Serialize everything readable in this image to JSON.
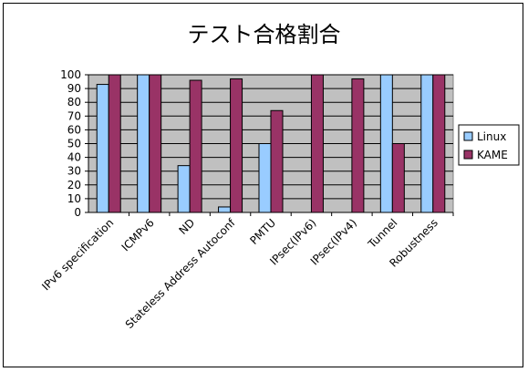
{
  "chart_data": {
    "type": "bar",
    "title": "テスト合格割合",
    "categories": [
      "IPv6 specification",
      "ICMPv6",
      "ND",
      "Stateless Address Autoconf",
      "PMTU",
      "IPsec(IPv6)",
      "IPsec(IPv4)",
      "Tunnel",
      "Robustness"
    ],
    "series": [
      {
        "name": "Linux",
        "color": "#99CCFF",
        "values": [
          93,
          100,
          34,
          4,
          50,
          0,
          0,
          100,
          100
        ]
      },
      {
        "name": "KAME",
        "color": "#993366",
        "values": [
          100,
          100,
          96,
          97,
          74,
          100,
          97,
          50,
          100
        ]
      }
    ],
    "ylim": [
      0,
      100
    ],
    "yticks": [
      0,
      10,
      20,
      30,
      40,
      50,
      60,
      70,
      80,
      90,
      100
    ],
    "grid": true,
    "plot_background": "#C0C0C0",
    "legend_position": "right"
  }
}
